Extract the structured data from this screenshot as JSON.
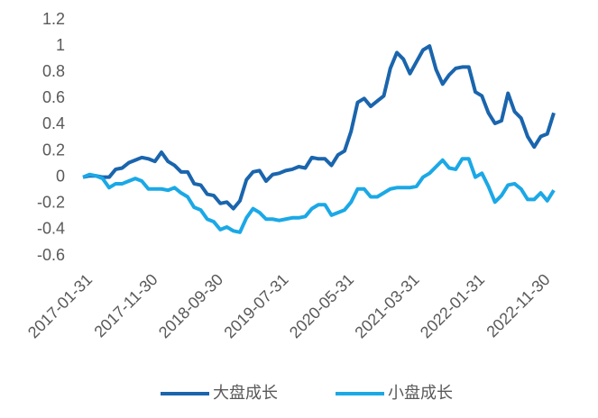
{
  "chart_data": {
    "type": "line",
    "categories": [
      "2017-01-31",
      null,
      null,
      null,
      null,
      null,
      null,
      null,
      null,
      null,
      "2017-11-30",
      null,
      null,
      null,
      null,
      null,
      null,
      null,
      null,
      null,
      "2018-09-30",
      null,
      null,
      null,
      null,
      null,
      null,
      null,
      null,
      null,
      "2019-07-31",
      null,
      null,
      null,
      null,
      null,
      null,
      null,
      null,
      null,
      "2020-05-31",
      null,
      null,
      null,
      null,
      null,
      null,
      null,
      null,
      null,
      "2021-03-31",
      null,
      null,
      null,
      null,
      null,
      null,
      null,
      null,
      null,
      "2022-01-31",
      null,
      null,
      null,
      null,
      null,
      null,
      null,
      null,
      null,
      "2022-11-30",
      null,
      null
    ],
    "series": [
      {
        "name": "大盘成长",
        "color": "#1a65ad",
        "values": [
          0,
          0.01,
          0.01,
          0,
          0,
          0.06,
          0.07,
          0.11,
          0.13,
          0.15,
          0.14,
          0.12,
          0.19,
          0.12,
          0.09,
          0.04,
          0.04,
          -0.05,
          -0.06,
          -0.13,
          -0.14,
          -0.2,
          -0.19,
          -0.24,
          -0.18,
          -0.02,
          0.04,
          0.05,
          -0.03,
          0.02,
          0.03,
          0.05,
          0.06,
          0.08,
          0.07,
          0.15,
          0.14,
          0.14,
          0.09,
          0.17,
          0.2,
          0.35,
          0.57,
          0.6,
          0.54,
          0.58,
          0.62,
          0.83,
          0.95,
          0.9,
          0.79,
          0.88,
          0.97,
          1.0,
          0.82,
          0.71,
          0.78,
          0.83,
          0.84,
          0.84,
          0.65,
          0.62,
          0.49,
          0.41,
          0.43,
          0.64,
          0.5,
          0.45,
          0.31,
          0.23,
          0.31,
          0.33,
          0.49
        ]
      },
      {
        "name": "小盘成长",
        "color": "#1ba8e6",
        "values": [
          0,
          0.02,
          0.01,
          -0.01,
          -0.08,
          -0.05,
          -0.05,
          -0.03,
          -0.01,
          -0.03,
          -0.09,
          -0.09,
          -0.09,
          -0.1,
          -0.08,
          -0.12,
          -0.15,
          -0.23,
          -0.25,
          -0.32,
          -0.34,
          -0.4,
          -0.38,
          -0.41,
          -0.42,
          -0.31,
          -0.24,
          -0.27,
          -0.32,
          -0.32,
          -0.33,
          -0.32,
          -0.31,
          -0.31,
          -0.3,
          -0.24,
          -0.21,
          -0.21,
          -0.29,
          -0.27,
          -0.25,
          -0.19,
          -0.09,
          -0.09,
          -0.15,
          -0.15,
          -0.12,
          -0.09,
          -0.08,
          -0.08,
          -0.08,
          -0.07,
          0.0,
          0.03,
          0.08,
          0.13,
          0.07,
          0.06,
          0.14,
          0.14,
          0.0,
          0.03,
          -0.07,
          -0.19,
          -0.14,
          -0.06,
          -0.05,
          -0.09,
          -0.17,
          -0.17,
          -0.12,
          -0.18,
          -0.1
        ]
      }
    ],
    "ylim": [
      -0.6,
      1.2
    ],
    "yticks": [
      1.2,
      1,
      0.8,
      0.6,
      0.4,
      0.2,
      0,
      -0.2,
      -0.4,
      -0.6
    ],
    "legend": "bottom"
  }
}
